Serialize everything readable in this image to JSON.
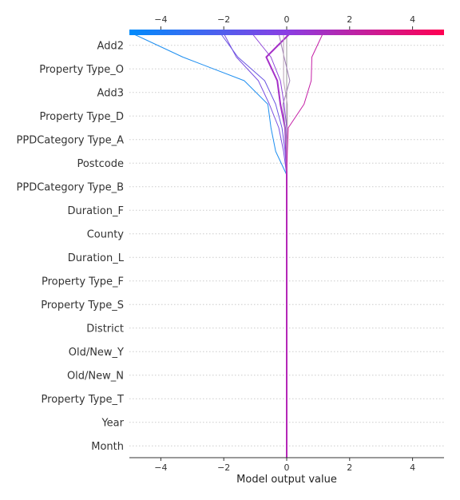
{
  "chart_data": {
    "type": "line",
    "subtype": "shap-decision-plot",
    "xlabel": "Model output value",
    "xlim": [
      -5,
      5
    ],
    "xticks": [
      -4,
      -2,
      0,
      2,
      4
    ],
    "grid": "horizontal-dotted",
    "base_value": 0,
    "features": [
      "Add2",
      "Property Type_O",
      "Add3",
      "Property Type_D",
      "PPDCategory Type_A",
      "Postcode",
      "PPDCategory Type_B",
      "Duration_F",
      "County",
      "Duration_L",
      "Property Type_F",
      "Property Type_S",
      "District",
      "Old/New_Y",
      "Old/New_N",
      "Property Type_T",
      "Year",
      "Month"
    ],
    "colorbar": {
      "colors": [
        "#008bfb",
        "#8a3ee3",
        "#ff0052"
      ],
      "range": [
        -5,
        5
      ]
    },
    "series": [
      {
        "values": [
          -4.9,
          -3.3,
          -1.35,
          -0.6,
          -0.5,
          -0.35,
          0,
          0,
          0,
          0,
          0,
          0,
          0,
          0,
          0,
          0,
          0,
          0,
          0
        ],
        "color": "#1f8ff0",
        "width": 1
      },
      {
        "values": [
          -2.0,
          -1.6,
          -0.9,
          -0.55,
          -0.25,
          -0.1,
          0,
          0,
          0,
          0,
          0,
          0,
          0,
          0,
          0,
          0,
          0,
          0,
          0
        ],
        "color": "#7a4fe0",
        "width": 1
      },
      {
        "values": [
          -2.1,
          -1.55,
          -0.7,
          -0.35,
          -0.15,
          -0.05,
          0,
          0,
          0,
          0,
          0,
          0,
          0,
          0,
          0,
          0,
          0,
          0,
          0
        ],
        "color": "#6a55e2",
        "width": 1
      },
      {
        "values": [
          -1.1,
          -0.5,
          -0.2,
          -0.08,
          0,
          0,
          0,
          0,
          0,
          0,
          0,
          0,
          0,
          0,
          0,
          0,
          0,
          0,
          0
        ],
        "color": "#8f45d8",
        "width": 1
      },
      {
        "values": [
          0.1,
          -0.65,
          -0.3,
          -0.2,
          -0.05,
          -0.02,
          0,
          0,
          0,
          0,
          0,
          0,
          0,
          0,
          0,
          0,
          0,
          0,
          0
        ],
        "color": "#a52fc8",
        "width": 2
      },
      {
        "values": [
          -0.25,
          -0.08,
          0.1,
          -0.12,
          -0.05,
          0,
          0,
          0,
          0,
          0,
          0,
          0,
          0,
          0,
          0,
          0,
          0,
          0,
          0
        ],
        "color": "#9f7fb5",
        "width": 1
      },
      {
        "values": [
          -0.1,
          -0.1,
          -0.1,
          0.02,
          0.02,
          0,
          0,
          0,
          0,
          0,
          0,
          0,
          0,
          0,
          0,
          0,
          0,
          0,
          0
        ],
        "color": "#b9a3b8",
        "width": 1
      },
      {
        "values": [
          1.15,
          0.8,
          0.78,
          0.55,
          0.05,
          0.02,
          0,
          0,
          0,
          0,
          0,
          0,
          0,
          0,
          0,
          0,
          0,
          0,
          0
        ],
        "color": "#c41fa6",
        "width": 1
      }
    ]
  }
}
